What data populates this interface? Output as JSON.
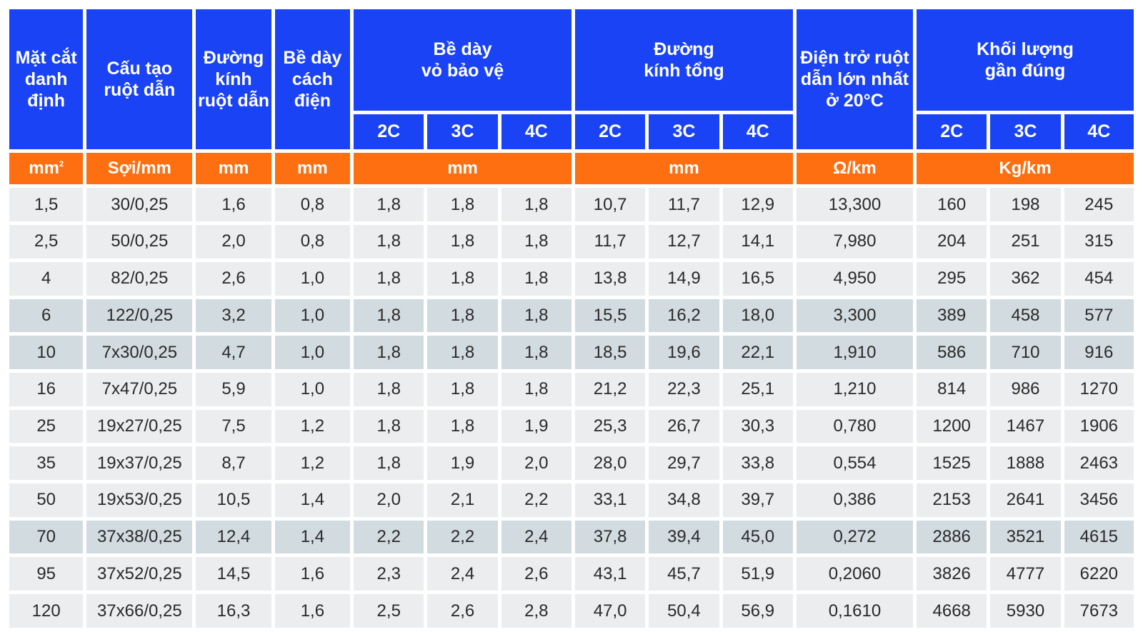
{
  "headers": {
    "mat_cat": [
      "Mặt cắt",
      "danh",
      "định"
    ],
    "cau_tao": [
      "Cấu tạo",
      "ruột dẫn"
    ],
    "duong_kinh_ruot": [
      "Đường",
      "kính",
      "ruột dẫn"
    ],
    "be_day_cach_dien": [
      "Bề dày",
      "cách",
      "điện"
    ],
    "be_day_vo": [
      "Bề dày",
      "vỏ bảo vệ"
    ],
    "duong_kinh_tong": [
      "Đường",
      "kính tổng"
    ],
    "dien_tro": [
      "Điện trở ruột",
      "dẫn lớn nhất",
      "ở 20°C"
    ],
    "khoi_luong": [
      "Khối lượng",
      "gần đúng"
    ]
  },
  "core_labels": [
    "2C",
    "3C",
    "4C"
  ],
  "units": {
    "mat_cat": "mm",
    "mat_cat_sup": "2",
    "cau_tao": "Sợi/mm",
    "duong_kinh_ruot": "mm",
    "be_day_cach_dien": "mm",
    "be_day_vo": "mm",
    "duong_kinh_tong": "mm",
    "dien_tro": "Ω/km",
    "khoi_luong": "Kg/km"
  },
  "rows": [
    [
      "1,5",
      "30/0,25",
      "1,6",
      "0,8",
      "1,8",
      "1,8",
      "1,8",
      "10,7",
      "11,7",
      "12,9",
      "13,300",
      "160",
      "198",
      "245"
    ],
    [
      "2,5",
      "50/0,25",
      "2,0",
      "0,8",
      "1,8",
      "1,8",
      "1,8",
      "11,7",
      "12,7",
      "14,1",
      "7,980",
      "204",
      "251",
      "315"
    ],
    [
      "4",
      "82/0,25",
      "2,6",
      "1,0",
      "1,8",
      "1,8",
      "1,8",
      "13,8",
      "14,9",
      "16,5",
      "4,950",
      "295",
      "362",
      "454"
    ],
    [
      "6",
      "122/0,25",
      "3,2",
      "1,0",
      "1,8",
      "1,8",
      "1,8",
      "15,5",
      "16,2",
      "18,0",
      "3,300",
      "389",
      "458",
      "577"
    ],
    [
      "10",
      "7x30/0,25",
      "4,7",
      "1,0",
      "1,8",
      "1,8",
      "1,8",
      "18,5",
      "19,6",
      "22,1",
      "1,910",
      "586",
      "710",
      "916"
    ],
    [
      "16",
      "7x47/0,25",
      "5,9",
      "1,0",
      "1,8",
      "1,8",
      "1,8",
      "21,2",
      "22,3",
      "25,1",
      "1,210",
      "814",
      "986",
      "1270"
    ],
    [
      "25",
      "19x27/0,25",
      "7,5",
      "1,2",
      "1,8",
      "1,8",
      "1,9",
      "25,3",
      "26,7",
      "30,3",
      "0,780",
      "1200",
      "1467",
      "1906"
    ],
    [
      "35",
      "19x37/0,25",
      "8,7",
      "1,2",
      "1,8",
      "1,9",
      "2,0",
      "28,0",
      "29,7",
      "33,8",
      "0,554",
      "1525",
      "1888",
      "2463"
    ],
    [
      "50",
      "19x53/0,25",
      "10,5",
      "1,4",
      "2,0",
      "2,1",
      "2,2",
      "33,1",
      "34,8",
      "39,7",
      "0,386",
      "2153",
      "2641",
      "3456"
    ],
    [
      "70",
      "37x38/0,25",
      "12,4",
      "1,4",
      "2,2",
      "2,2",
      "2,4",
      "37,8",
      "39,4",
      "45,0",
      "0,272",
      "2886",
      "3521",
      "4615"
    ],
    [
      "95",
      "37x52/0,25",
      "14,5",
      "1,6",
      "2,3",
      "2,4",
      "2,6",
      "43,1",
      "45,7",
      "51,9",
      "0,2060",
      "3826",
      "4777",
      "6220"
    ],
    [
      "120",
      "37x66/0,25",
      "16,3",
      "1,6",
      "2,5",
      "2,6",
      "2,8",
      "47,0",
      "50,4",
      "56,9",
      "0,1610",
      "4668",
      "5930",
      "7673"
    ]
  ],
  "colors": {
    "header_blue": "#1a43f5",
    "unit_orange": "#fd6f10",
    "row_light": "#ebedee",
    "row_dark": "#d2dbdf"
  }
}
